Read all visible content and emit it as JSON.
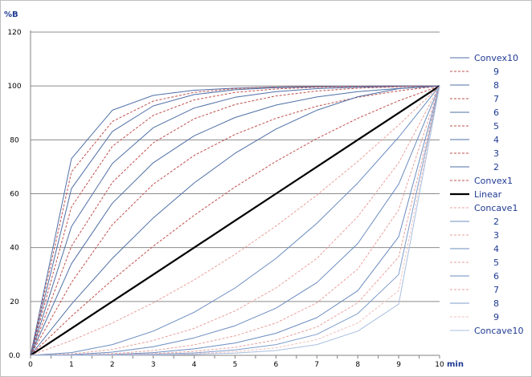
{
  "chart_data": {
    "type": "line",
    "ylabel": "%B",
    "xlabel": "min",
    "xlim": [
      0,
      10
    ],
    "ylim": [
      0,
      120
    ],
    "x_ticks": [
      "0",
      "1",
      "2",
      "3",
      "4",
      "5",
      "6",
      "7",
      "8",
      "9",
      "10"
    ],
    "y_ticks": [
      "0.0",
      "20",
      "40",
      "60",
      "80",
      "100",
      "120"
    ],
    "grid": "horizontal",
    "legend_position": "right",
    "x": [
      0,
      1,
      2,
      3,
      4,
      5,
      6,
      7,
      8,
      9,
      10
    ],
    "series": [
      {
        "name": "Convex10",
        "color": "#4f6fa6",
        "dash": "solid",
        "width": 1,
        "values": [
          0,
          73,
          91,
          96.5,
          98.4,
          99.2,
          99.6,
          99.8,
          99.9,
          100,
          100
        ]
      },
      {
        "name": "9",
        "color": "#c0504d",
        "dash": "dashed",
        "width": 1,
        "values": [
          0,
          68.1,
          86.8,
          94.4,
          97.6,
          99.0,
          99.6,
          99.8,
          99.9,
          100,
          100
        ]
      },
      {
        "name": "8",
        "color": "#4f6fa6",
        "dash": "solid",
        "width": 1,
        "values": [
          0,
          61.9,
          83.1,
          92.6,
          96.8,
          98.6,
          99.4,
          99.7,
          99.9,
          100,
          100
        ]
      },
      {
        "name": "7",
        "color": "#c0504d",
        "dash": "dashed",
        "width": 1,
        "values": [
          0,
          55.1,
          77.6,
          89.1,
          94.8,
          97.6,
          98.9,
          99.5,
          99.8,
          99.9,
          100
        ]
      },
      {
        "name": "6",
        "color": "#4f6fa6",
        "dash": "solid",
        "width": 1,
        "values": [
          0,
          47.8,
          71.2,
          84.5,
          91.8,
          95.8,
          97.9,
          99.0,
          99.5,
          99.8,
          100
        ]
      },
      {
        "name": "5",
        "color": "#c0504d",
        "dash": "dashed",
        "width": 1,
        "values": [
          0,
          40.5,
          64.2,
          78.9,
          87.8,
          93.1,
          96.3,
          98.1,
          99.2,
          99.7,
          100
        ]
      },
      {
        "name": "4",
        "color": "#4f6fa6",
        "dash": "solid",
        "width": 1,
        "values": [
          0,
          34.0,
          56.5,
          71.5,
          81.5,
          88.3,
          92.9,
          95.9,
          97.9,
          99.1,
          100
        ]
      },
      {
        "name": "3",
        "color": "#c0504d",
        "dash": "dashed",
        "width": 1,
        "values": [
          0,
          27.0,
          48.5,
          63.5,
          74.2,
          82.0,
          88.0,
          92.5,
          95.8,
          98.2,
          100
        ]
      },
      {
        "name": "2",
        "color": "#4f6fa6",
        "dash": "solid",
        "width": 1,
        "values": [
          0,
          19.0,
          36.0,
          51.0,
          64.0,
          75.0,
          84.0,
          91.0,
          96.0,
          99.0,
          100
        ]
      },
      {
        "name": "Convex1",
        "color": "#c0504d",
        "dash": "dashed",
        "width": 1,
        "values": [
          0,
          14.5,
          28.0,
          40.5,
          52.0,
          62.5,
          72.0,
          80.5,
          88.0,
          94.5,
          100
        ]
      },
      {
        "name": "Linear",
        "color": "#000000",
        "dash": "solid",
        "width": 2.2,
        "values": [
          0,
          10,
          20,
          30,
          40,
          50,
          60,
          70,
          80,
          90,
          100
        ]
      },
      {
        "name": "Concave1",
        "color": "#e8a19c",
        "dash": "dashed",
        "width": 1,
        "values": [
          0,
          5.5,
          12.0,
          19.5,
          28.0,
          37.5,
          48.0,
          59.5,
          72.0,
          85.5,
          100
        ]
      },
      {
        "name": "2",
        "color": "#6b8cc0",
        "dash": "solid",
        "width": 1,
        "values": [
          0,
          1.0,
          4.0,
          9.0,
          16.0,
          25.0,
          36.0,
          49.0,
          64.0,
          81.0,
          100
        ]
      },
      {
        "name": "3",
        "color": "#e8a19c",
        "dash": "dashed",
        "width": 1,
        "values": [
          0,
          0.5,
          2.2,
          5.5,
          10.0,
          16.5,
          25.0,
          36.0,
          51.5,
          71.5,
          100
        ]
      },
      {
        "name": "4",
        "color": "#6b8cc0",
        "dash": "solid",
        "width": 1,
        "values": [
          0,
          0.2,
          1.2,
          3.2,
          6.5,
          11.0,
          17.5,
          27.0,
          41.5,
          63.5,
          100
        ]
      },
      {
        "name": "5",
        "color": "#e8a19c",
        "dash": "dashed",
        "width": 1,
        "values": [
          0,
          0.1,
          0.6,
          1.8,
          3.9,
          7.2,
          12.0,
          19.5,
          32.0,
          54.0,
          100
        ]
      },
      {
        "name": "6",
        "color": "#6b8cc0",
        "dash": "solid",
        "width": 1,
        "values": [
          0,
          0.05,
          0.3,
          1.0,
          2.4,
          4.6,
          8.2,
          14.0,
          24.0,
          44.0,
          100
        ]
      },
      {
        "name": "7",
        "color": "#e8a19c",
        "dash": "dashed",
        "width": 1,
        "values": [
          0,
          0.02,
          0.2,
          0.6,
          1.5,
          3.0,
          5.7,
          10.5,
          19.5,
          36.5,
          100
        ]
      },
      {
        "name": "8",
        "color": "#7d9ccb",
        "dash": "solid",
        "width": 1,
        "values": [
          0,
          0.01,
          0.1,
          0.4,
          0.9,
          2.0,
          4.0,
          7.8,
          15.5,
          30.0,
          100
        ]
      },
      {
        "name": "9",
        "color": "#f0c0bd",
        "dash": "dashed",
        "width": 1,
        "values": [
          0,
          0.0,
          0.05,
          0.2,
          0.6,
          1.3,
          2.8,
          5.8,
          12.0,
          24.0,
          100
        ]
      },
      {
        "name": "Concave10",
        "color": "#a9bfe0",
        "dash": "solid",
        "width": 1,
        "values": [
          0,
          0.0,
          0.02,
          0.1,
          0.35,
          0.8,
          1.8,
          4.0,
          9.0,
          19.0,
          100
        ]
      }
    ]
  }
}
